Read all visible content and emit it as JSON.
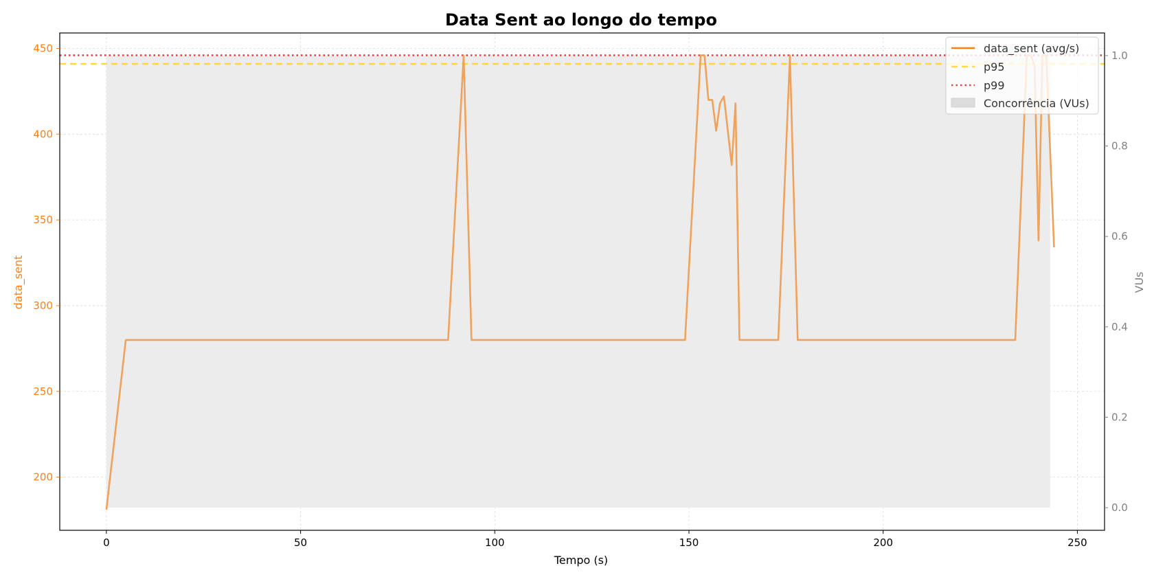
{
  "colors": {
    "series": "#ff7f0e",
    "series_line": "#efa25c",
    "p95": "#ffd21f",
    "p99": "#e31a1c",
    "fill": "#ececec",
    "grid": "#d9d9d9",
    "right_axis": "#808080",
    "axis": "#000000"
  },
  "chart_data": {
    "type": "line",
    "title": "Data Sent ao longo do tempo",
    "xlabel": "Tempo (s)",
    "ylabel": "data_sent",
    "y2label": "VUs",
    "xlim": [
      -12,
      257
    ],
    "ylim": [
      169,
      459
    ],
    "y2lim": [
      -0.05,
      1.05
    ],
    "x_ticks": [
      0,
      50,
      100,
      150,
      200,
      250
    ],
    "y_ticks": [
      200,
      250,
      300,
      350,
      400,
      450
    ],
    "y2_ticks": [
      0.0,
      0.2,
      0.4,
      0.6,
      0.8,
      1.0
    ],
    "y2_tick_labels": [
      "0.0",
      "0.2",
      "0.4",
      "0.6",
      "0.8",
      "1.0"
    ],
    "grid": true,
    "legend_position": "top-right",
    "legend": [
      "data_sent (avg/s)",
      "p95",
      "p99",
      "Concorrência (VUs)"
    ],
    "series": [
      {
        "name": "data_sent (avg/s)",
        "x": [
          0,
          5,
          88,
          92,
          94,
          149,
          153,
          154,
          155,
          156,
          157,
          158,
          159,
          161,
          162,
          163,
          173,
          176,
          178,
          234,
          237,
          238,
          239,
          240,
          241,
          242,
          244
        ],
        "y": [
          181,
          280,
          280,
          446,
          280,
          280,
          446,
          446,
          420,
          420,
          402,
          418,
          422,
          382,
          418,
          280,
          280,
          446,
          280,
          280,
          446,
          446,
          440,
          338,
          446,
          446,
          334
        ]
      }
    ],
    "p95": 441,
    "p99": 446,
    "concurrency": {
      "x_start": 0,
      "x_end": 243,
      "vus": 1.0
    }
  }
}
